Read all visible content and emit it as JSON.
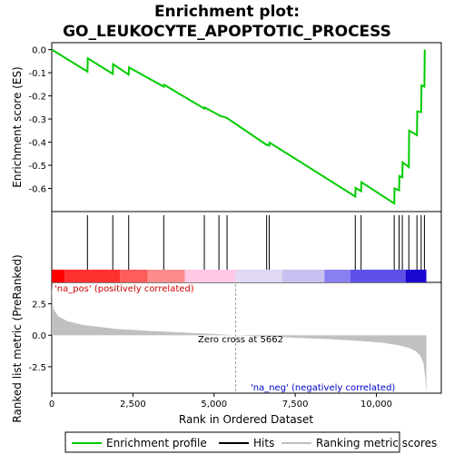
{
  "chart_data": {
    "type": "line",
    "title_line1": "Enrichment plot:",
    "title_line2": "GO_LEUKOCYTE_APOPTOTIC_PROCESS",
    "xlabel": "Rank in Ordered Dataset",
    "ylabel_top": "Enrichment score (ES)",
    "ylabel_bottom": "Ranked list metric (PreRanked)",
    "xlim": [
      0,
      12000
    ],
    "x_ticks": [
      0,
      2500,
      5000,
      7500,
      10000
    ],
    "x_tick_labels": [
      "0",
      "2,500",
      "5,000",
      "7,500",
      "10,000"
    ],
    "es_ylim": [
      -0.7,
      0.03
    ],
    "es_ticks": [
      0.0,
      -0.1,
      -0.2,
      -0.3,
      -0.4,
      -0.5,
      -0.6
    ],
    "es_tick_labels": [
      "0.0",
      "-0.1",
      "-0.2",
      "-0.3",
      "-0.4",
      "-0.5",
      "-0.6"
    ],
    "metric_ylim": [
      -4.6,
      4.2
    ],
    "metric_ticks": [
      2.5,
      0.0,
      -2.5
    ],
    "metric_tick_labels": [
      "2.5",
      "0.0",
      "-2.5"
    ],
    "series": [
      {
        "name": "Enrichment profile",
        "color": "#00cc00",
        "x": [
          0,
          1100,
          1110,
          1880,
          1890,
          2370,
          2380,
          3450,
          3460,
          4700,
          4710,
          5150,
          5160,
          5400,
          5410,
          6620,
          6630,
          6700,
          6710,
          9350,
          9360,
          9530,
          9540,
          10550,
          10560,
          10700,
          10710,
          10800,
          10810,
          11000,
          11010,
          11250,
          11260,
          11380,
          11390,
          11480,
          11490
        ],
        "y": [
          0.0,
          -0.095,
          -0.038,
          -0.105,
          -0.063,
          -0.108,
          -0.077,
          -0.16,
          -0.152,
          -0.255,
          -0.25,
          -0.283,
          -0.285,
          -0.295,
          -0.297,
          -0.412,
          -0.41,
          -0.415,
          -0.402,
          -0.635,
          -0.598,
          -0.612,
          -0.573,
          -0.665,
          -0.6,
          -0.608,
          -0.547,
          -0.552,
          -0.487,
          -0.508,
          -0.35,
          -0.37,
          -0.267,
          -0.27,
          -0.155,
          -0.16,
          0.0
        ]
      }
    ],
    "hits": [
      1100,
      1880,
      2370,
      3450,
      4700,
      5150,
      5400,
      6620,
      6700,
      9350,
      9530,
      10550,
      10700,
      10800,
      11000,
      11250,
      11380,
      11480
    ],
    "metric_profile": {
      "x": [
        0,
        50,
        200,
        500,
        1000,
        2000,
        3000,
        4000,
        5000,
        5662,
        6500,
        7500,
        8500,
        9500,
        10200,
        10700,
        11000,
        11200,
        11350,
        11450,
        11500,
        11540
      ],
      "y": [
        4.0,
        2.1,
        1.5,
        1.1,
        0.8,
        0.5,
        0.35,
        0.22,
        0.1,
        0.0,
        -0.1,
        -0.2,
        -0.3,
        -0.45,
        -0.6,
        -0.8,
        -1.0,
        -1.25,
        -1.6,
        -2.2,
        -3.2,
        -4.6
      ]
    },
    "color_band": {
      "segments": [
        {
          "from": 0,
          "to": 400,
          "color": "#ff0000"
        },
        {
          "from": 400,
          "to": 2100,
          "color": "#ff3030"
        },
        {
          "from": 2100,
          "to": 2950,
          "color": "#ff5c5c"
        },
        {
          "from": 2950,
          "to": 4100,
          "color": "#ff8c8c"
        },
        {
          "from": 4100,
          "to": 5662,
          "color": "#ffc8e4"
        },
        {
          "from": 5662,
          "to": 7100,
          "color": "#e0d8f4"
        },
        {
          "from": 7100,
          "to": 8400,
          "color": "#c8c0f0"
        },
        {
          "from": 8400,
          "to": 9200,
          "color": "#8a7ff0"
        },
        {
          "from": 9200,
          "to": 10900,
          "color": "#6050e8"
        },
        {
          "from": 10900,
          "to": 11540,
          "color": "#1a08d0"
        }
      ]
    },
    "zero_cross_x": 5662,
    "annotations": {
      "pos": "'na_pos' (positively correlated)",
      "neg": "'na_neg' (negatively correlated)",
      "zero_cross": "Zero cross at 5662"
    },
    "legend": {
      "items": [
        "Enrichment profile",
        "Hits",
        "Ranking metric scores"
      ],
      "placement": "bottom"
    },
    "colors": {
      "es_line": "#00cc00",
      "pos_text": "#cc0000",
      "neg_text": "#0000cc",
      "metric_fill": "#c0c0c0"
    }
  }
}
